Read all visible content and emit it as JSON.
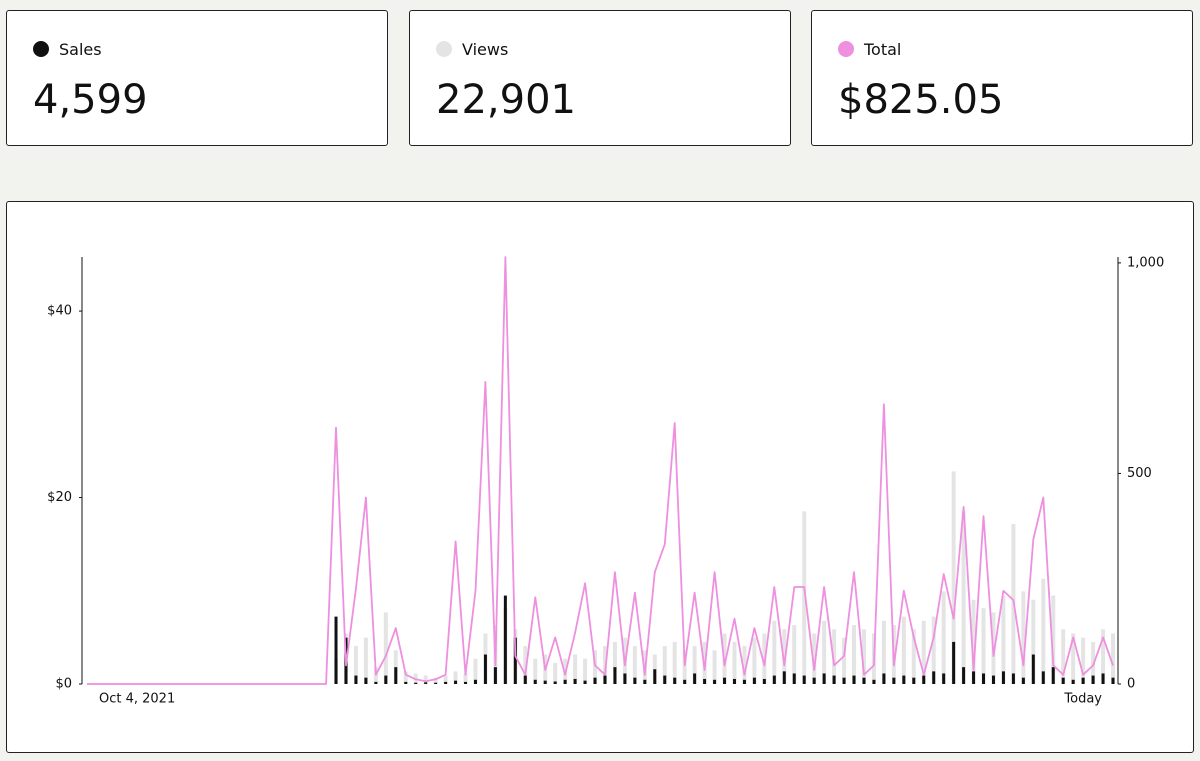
{
  "stats": [
    "4,599",
    "22,901",
    "$825.05"
  ],
  "chart_data": {
    "type": "bar-line",
    "categories": [
      "Oct 4, 2021",
      null,
      null,
      null,
      null,
      null,
      null,
      null,
      null,
      null,
      null,
      null,
      null,
      null,
      null,
      null,
      null,
      null,
      null,
      null,
      null,
      null,
      null,
      null,
      null,
      null,
      null,
      null,
      null,
      null,
      null,
      null,
      null,
      null,
      null,
      null,
      null,
      null,
      null,
      null,
      null,
      null,
      null,
      null,
      null,
      null,
      null,
      null,
      null,
      null,
      null,
      null,
      null,
      null,
      null,
      null,
      null,
      null,
      null,
      null,
      null,
      null,
      null,
      null,
      null,
      null,
      null,
      null,
      null,
      null,
      null,
      null,
      null,
      null,
      null,
      null,
      null,
      null,
      null,
      null,
      null,
      null,
      null,
      null,
      null,
      null,
      null,
      null,
      null,
      null,
      null,
      null,
      null,
      null,
      null,
      null,
      null,
      null,
      null,
      null,
      null,
      null,
      null,
      "Today"
    ],
    "ylim": [
      0,
      45.8
    ],
    "yticks": [
      {
        "value": 0,
        "label": "$0"
      },
      {
        "value": 20,
        "label": "$20"
      },
      {
        "value": 40,
        "label": "$40"
      }
    ],
    "y2lim": [
      0,
      1014
    ],
    "y2ticks": [
      0,
      500,
      {
        "value": 1000,
        "label": "1,000"
      }
    ],
    "series": [
      {
        "name": "Sales",
        "color": "#111111",
        "kind": "bar",
        "axis": "y2",
        "values": [
          0,
          0,
          0,
          0,
          0,
          0,
          0,
          0,
          0,
          0,
          0,
          0,
          0,
          0,
          0,
          0,
          0,
          0,
          0,
          0,
          0,
          0,
          0,
          0,
          0,
          160,
          110,
          20,
          15,
          5,
          20,
          40,
          5,
          3,
          4,
          3,
          5,
          8,
          5,
          10,
          70,
          40,
          210,
          110,
          20,
          10,
          8,
          6,
          10,
          12,
          8,
          15,
          20,
          40,
          25,
          15,
          10,
          35,
          20,
          15,
          10,
          25,
          12,
          10,
          15,
          12,
          10,
          15,
          12,
          20,
          30,
          25,
          20,
          15,
          25,
          20,
          15,
          20,
          15,
          10,
          25,
          15,
          20,
          15,
          20,
          30,
          25,
          100,
          40,
          30,
          25,
          20,
          30,
          25,
          15,
          70,
          30,
          40,
          15,
          10,
          15,
          20,
          25,
          15
        ]
      },
      {
        "name": "Views",
        "color": "#e4e4e4",
        "kind": "bar",
        "axis": "y2",
        "values": [
          0,
          0,
          0,
          0,
          0,
          0,
          0,
          0,
          0,
          0,
          0,
          0,
          0,
          0,
          0,
          0,
          0,
          0,
          0,
          0,
          0,
          0,
          0,
          0,
          0,
          60,
          120,
          90,
          110,
          40,
          170,
          80,
          30,
          25,
          20,
          15,
          20,
          30,
          25,
          60,
          120,
          140,
          180,
          130,
          90,
          60,
          70,
          50,
          60,
          70,
          60,
          80,
          90,
          100,
          110,
          90,
          80,
          70,
          90,
          100,
          80,
          90,
          100,
          80,
          120,
          100,
          90,
          110,
          120,
          150,
          130,
          140,
          410,
          120,
          150,
          130,
          110,
          140,
          130,
          120,
          150,
          140,
          160,
          130,
          150,
          160,
          220,
          505,
          410,
          200,
          180,
          170,
          210,
          380,
          220,
          200,
          250,
          210,
          130,
          120,
          110,
          100,
          130,
          120
        ]
      },
      {
        "name": "Total",
        "color": "#ee8fdf",
        "kind": "line",
        "values": [
          0,
          0,
          0,
          0,
          0,
          0,
          0,
          0,
          0,
          0,
          0,
          0,
          0,
          0,
          0,
          0,
          0,
          0,
          0,
          0,
          0,
          0,
          0,
          0,
          0,
          27.5,
          2,
          10.2,
          20,
          1,
          3,
          6,
          1,
          0.5,
          0.3,
          0.5,
          1,
          15.3,
          1,
          10,
          32.4,
          2,
          45.8,
          3,
          1,
          9.3,
          1.5,
          5,
          1,
          5.5,
          10.8,
          2,
          1,
          12,
          2,
          9.8,
          1,
          12,
          15,
          28,
          2,
          9.8,
          1.5,
          12,
          2,
          7,
          1,
          6,
          2,
          10.4,
          2,
          10.4,
          10.4,
          1.5,
          10.4,
          2,
          3,
          12,
          1,
          2,
          30,
          2,
          10,
          5,
          1,
          5,
          11.8,
          7,
          19,
          1.5,
          18,
          3,
          10,
          9,
          2,
          15.5,
          20,
          2,
          1,
          5,
          1,
          2,
          5,
          2
        ]
      }
    ]
  }
}
